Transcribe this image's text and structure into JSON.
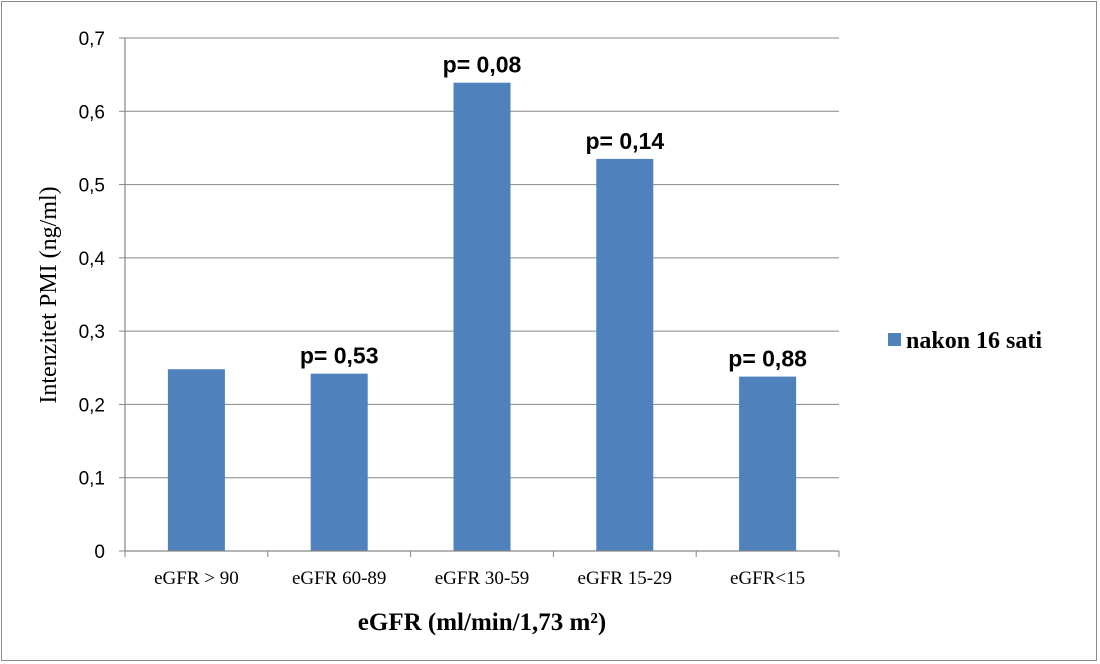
{
  "chart_data": {
    "type": "bar",
    "categories": [
      "eGFR > 90",
      "eGFR 60-89",
      "eGFR 30-59",
      "eGFR 15-29",
      "eGFR<15"
    ],
    "series": [
      {
        "name": "nakon 16 sati",
        "values": [
          0.248,
          0.242,
          0.639,
          0.535,
          0.238
        ],
        "color": "#4f81bd"
      }
    ],
    "data_labels": [
      "",
      "p= 0,53",
      "p= 0,08",
      "p= 0,14",
      "p= 0,88"
    ],
    "yticks": [
      "0",
      "0,1",
      "0,2",
      "0,3",
      "0,4",
      "0,5",
      "0,6",
      "0,7"
    ],
    "ylim": [
      0,
      0.7
    ],
    "xlabel": "eGFR (ml/min/1,73 m²)",
    "ylabel": "Intenzitet PMI (ng/ml)",
    "grid": true,
    "legend_position": "right"
  }
}
